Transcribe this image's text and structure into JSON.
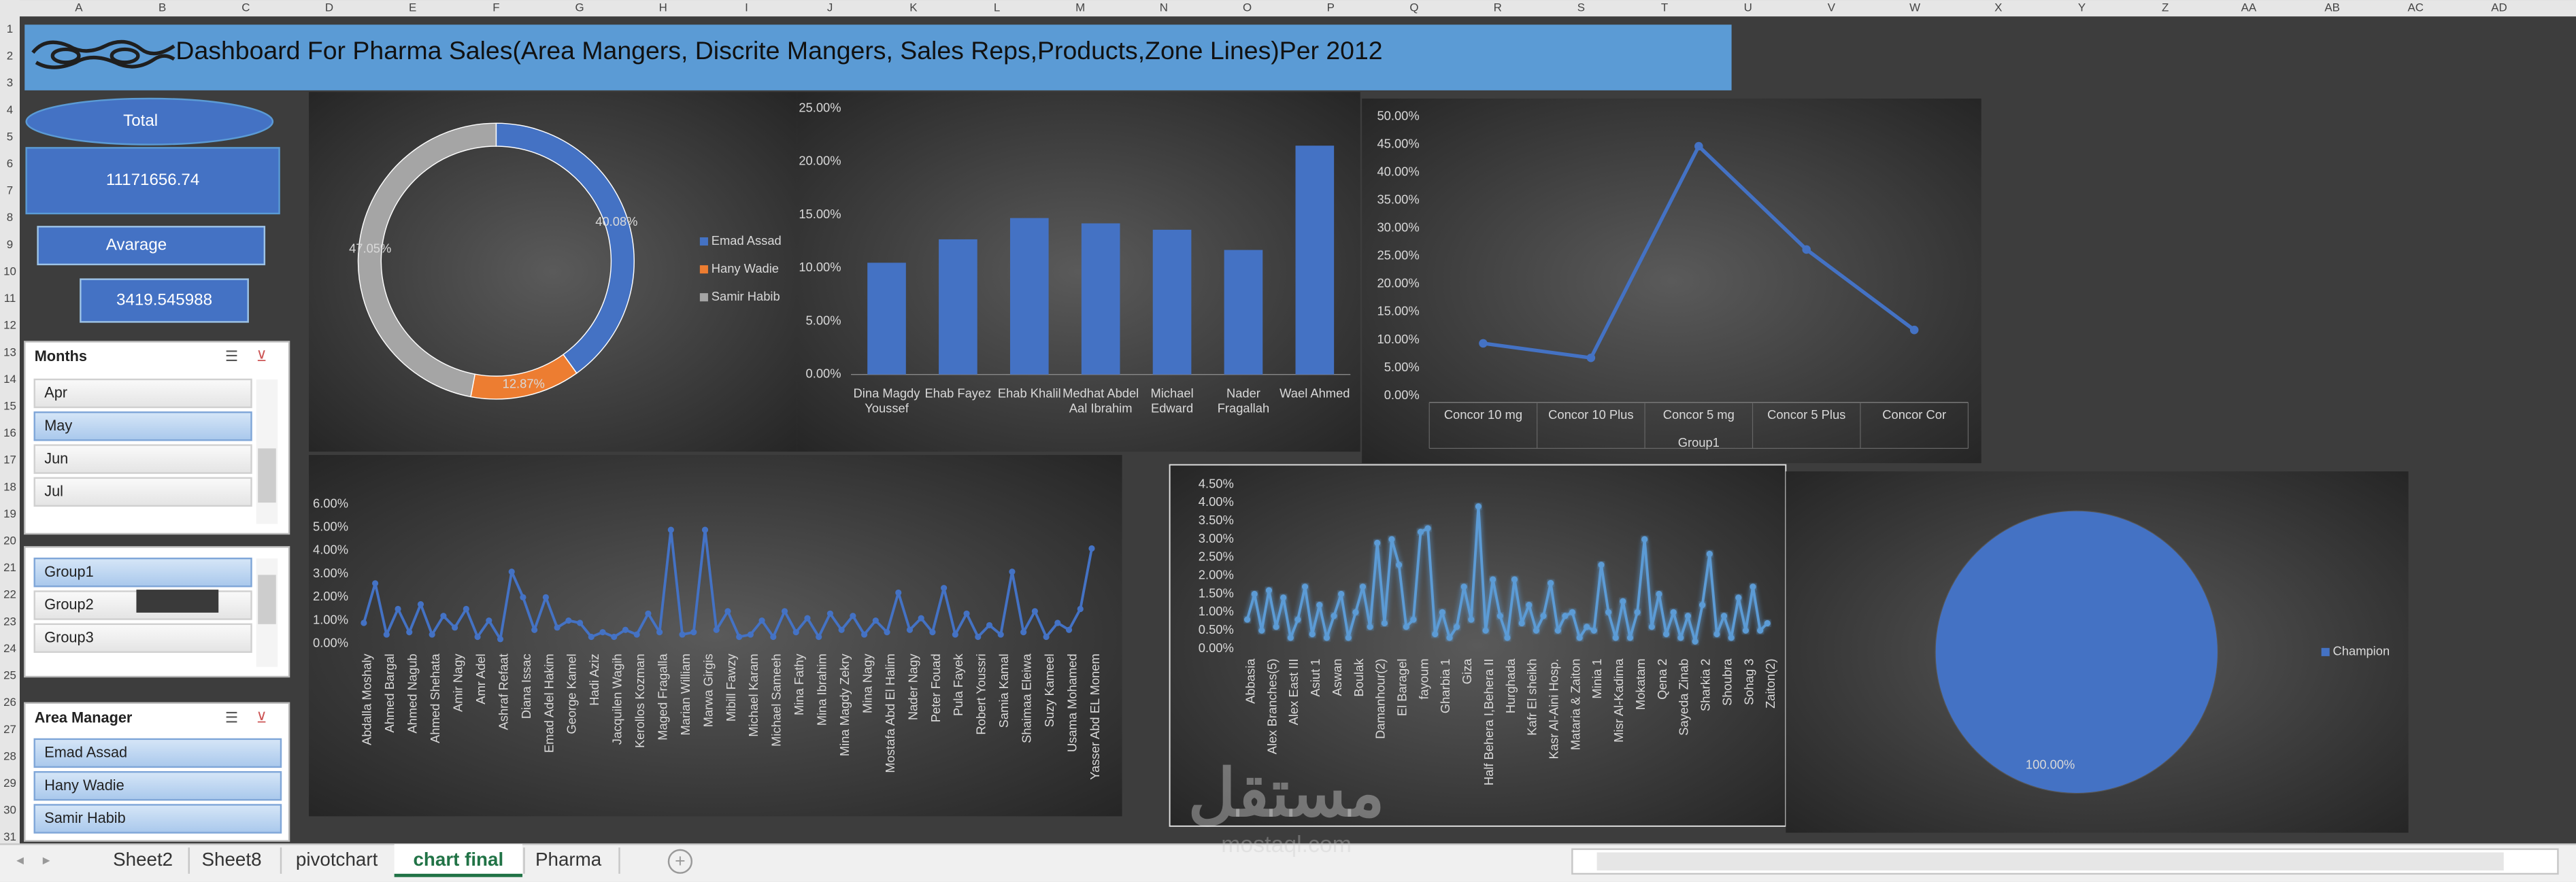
{
  "column_headers": [
    "A",
    "B",
    "C",
    "D",
    "E",
    "F",
    "G",
    "H",
    "I",
    "J",
    "K",
    "L",
    "M",
    "N",
    "O",
    "P",
    "Q",
    "R",
    "S",
    "T",
    "U",
    "V",
    "W",
    "X",
    "Y",
    "Z",
    "AA",
    "AB",
    "AC",
    "AD"
  ],
  "row_numbers": [
    1,
    2,
    3,
    4,
    5,
    6,
    7,
    8,
    9,
    10,
    11,
    12,
    13,
    14,
    15,
    16,
    17,
    18,
    19,
    20,
    21,
    22,
    23,
    24,
    25,
    26,
    27,
    28,
    29,
    30,
    31
  ],
  "title": "Dashboard For Pharma Sales(Area Mangers, Discrite Mangers, Sales Reps,Products,Zone Lines)Per 2012",
  "cards": {
    "total_label": "Total",
    "total_value": "11171656.74",
    "average_label": "Avarage",
    "average_value": "3419.545988"
  },
  "slicers": [
    {
      "title": "Months",
      "items": [
        "Apr",
        "May",
        "Jun",
        "Jul"
      ],
      "selected": [
        1
      ]
    },
    {
      "items": [
        "Group1",
        "Group2",
        "Group3"
      ],
      "selected": [
        0
      ]
    },
    {
      "title": "Area Manager",
      "items": [
        "Emad Assad",
        "Hany Wadie",
        "Samir Habib"
      ],
      "selected": [
        0,
        1,
        2
      ]
    }
  ],
  "chart_data": [
    {
      "type": "donut",
      "categories": [
        "Emad Assad",
        "Hany Wadie",
        "Samir Habib"
      ],
      "values": [
        40.08,
        12.87,
        47.05
      ],
      "value_labels": [
        "40.08%",
        "12.87%",
        "47.05%"
      ],
      "colors": [
        "#4472c4",
        "#ed7d31",
        "#a5a5a5"
      ],
      "legend": "right"
    },
    {
      "type": "bar",
      "categories": [
        "Dina Magdy Youssef",
        "Ehab Fayez",
        "Ehab Khalil",
        "Medhat Abdel Aal Ibrahim",
        "Michael Edward",
        "Nader Fragallah",
        "Wael Ahmed"
      ],
      "values": [
        10.5,
        12.7,
        14.7,
        14.2,
        13.6,
        11.7,
        21.5
      ],
      "color": "#4472c4",
      "ylim": [
        0,
        25
      ],
      "yticks": [
        {
          "value": 0,
          "label": "0.00%"
        },
        {
          "value": 5,
          "label": "5.00%"
        },
        {
          "value": 10,
          "label": "10.00%"
        },
        {
          "value": 15,
          "label": "15.00%"
        },
        {
          "value": 20,
          "label": "20.00%"
        },
        {
          "value": 25,
          "label": "25.00%"
        }
      ]
    },
    {
      "type": "line",
      "categories": [
        "Concor 10 mg",
        "Concor 10 Plus",
        "Concor 5 mg",
        "Concor 5 Plus",
        "Concor Cor"
      ],
      "values": [
        9.4,
        6.8,
        44.7,
        26.2,
        11.8
      ],
      "x_label": "Group1",
      "color": "#4472c4",
      "ylim": [
        0,
        50
      ],
      "yticks": [
        {
          "value": 0,
          "label": "0.00%"
        },
        {
          "value": 5,
          "label": "5.00%"
        },
        {
          "value": 10,
          "label": "10.00%"
        },
        {
          "value": 15,
          "label": "15.00%"
        },
        {
          "value": 20,
          "label": "20.00%"
        },
        {
          "value": 25,
          "label": "25.00%"
        },
        {
          "value": 30,
          "label": "30.00%"
        },
        {
          "value": 35,
          "label": "35.00%"
        },
        {
          "value": 40,
          "label": "40.00%"
        },
        {
          "value": 45,
          "label": "45.00%"
        },
        {
          "value": 50,
          "label": "50.00%"
        }
      ]
    },
    {
      "type": "line",
      "categories": [
        "Abdalla Moshaly",
        null,
        "Ahmed Bargal",
        null,
        "Ahmed Nagub",
        null,
        "Ahmed Shehata",
        null,
        "Amir Nagy",
        null,
        "Amr Adel",
        null,
        "Ashraf Refaat",
        null,
        "Diana Issac",
        null,
        "Emad Adel Hakim",
        null,
        "George Kamel",
        null,
        "Hadi Aziz",
        null,
        "Jacquilen Wagih",
        null,
        "Kerollos Kozman",
        null,
        "Maged Fragalla",
        null,
        "Marian William",
        null,
        "Marwa Girgis",
        null,
        "Mibill Fawzy",
        null,
        "Michael Karam",
        null,
        "Michael Sameeh",
        null,
        "Mina Fathy",
        null,
        "Mina Ibrahim",
        null,
        "Mina Magdy Zekry",
        null,
        "Mina Nagy",
        null,
        "Mostafa Abd El Halim",
        null,
        "Nader Nagy",
        null,
        "Peter Fouad",
        null,
        "Pula Fayek",
        null,
        "Robert Youssri",
        null,
        "Samia Kamal",
        null,
        "Shaimaa Eleiwa",
        null,
        "Suzy Kameel",
        null,
        "Usama Mohamed",
        null,
        "Yasser Abd EL Monem"
      ],
      "values": [
        0.9,
        2.6,
        0.4,
        1.5,
        0.5,
        1.7,
        0.4,
        1.2,
        0.7,
        1.5,
        0.3,
        1.0,
        0.2,
        3.1,
        2.0,
        0.6,
        2.0,
        0.7,
        1.0,
        0.9,
        0.3,
        0.5,
        0.3,
        0.6,
        0.4,
        1.3,
        0.5,
        4.9,
        0.4,
        0.5,
        4.9,
        0.6,
        1.4,
        0.3,
        0.4,
        1.0,
        0.3,
        1.4,
        0.5,
        1.1,
        0.3,
        1.3,
        0.6,
        1.2,
        0.4,
        1.0,
        0.5,
        2.2,
        0.6,
        1.1,
        0.5,
        2.4,
        0.4,
        1.3,
        0.3,
        0.8,
        0.4,
        3.1,
        0.5,
        1.4,
        0.3,
        0.9,
        0.6,
        1.5,
        4.1
      ],
      "color": "#4472c4",
      "ylim": [
        0,
        6
      ],
      "yticks": [
        {
          "value": 0,
          "label": "0.00%"
        },
        {
          "value": 1,
          "label": "1.00%"
        },
        {
          "value": 2,
          "label": "2.00%"
        },
        {
          "value": 3,
          "label": "3.00%"
        },
        {
          "value": 4,
          "label": "4.00%"
        },
        {
          "value": 5,
          "label": "5.00%"
        },
        {
          "value": 6,
          "label": "6.00%"
        }
      ]
    },
    {
      "type": "line",
      "glow": true,
      "categories": [
        "Abbasia",
        null,
        null,
        "Alex Branches(5)",
        null,
        null,
        "Alex East III",
        null,
        null,
        "Asiut 1",
        null,
        null,
        "Aswan",
        null,
        null,
        "Boulak",
        null,
        null,
        "Damanhour(2)",
        null,
        null,
        "El Baragel",
        null,
        null,
        "fayoum",
        null,
        null,
        "Gharbia 1",
        null,
        null,
        "Giza",
        null,
        null,
        "Half Behera I,Behera II",
        null,
        null,
        "Hurghada",
        null,
        null,
        "Kafr El sheikh",
        null,
        null,
        "Kasr Al-Aini Hosp.",
        null,
        null,
        "Mataria & Zaiton",
        null,
        null,
        "Minia 1",
        null,
        null,
        "Misr Al-Kadima",
        null,
        null,
        "Mokatam",
        null,
        null,
        "Qena 2",
        null,
        null,
        "Sayeda Zinab",
        null,
        null,
        "Sharkia 2",
        null,
        null,
        "Shoubra",
        null,
        null,
        "Sohag 3",
        null,
        null,
        "Zaiton(2)"
      ],
      "values": [
        0.8,
        1.5,
        0.5,
        1.6,
        0.6,
        1.4,
        0.3,
        0.8,
        1.7,
        0.4,
        1.2,
        0.3,
        0.9,
        1.5,
        0.3,
        1.0,
        1.7,
        0.6,
        2.9,
        0.7,
        3.0,
        2.3,
        0.6,
        0.8,
        3.2,
        3.3,
        0.4,
        1.0,
        0.3,
        0.6,
        1.7,
        0.8,
        3.9,
        0.5,
        1.9,
        0.9,
        0.3,
        1.9,
        0.7,
        1.2,
        0.5,
        0.9,
        1.8,
        0.5,
        0.9,
        1.0,
        0.3,
        0.6,
        0.5,
        2.3,
        1.0,
        0.3,
        1.3,
        0.3,
        1.0,
        3.0,
        0.6,
        1.5,
        0.4,
        1.0,
        0.3,
        0.9,
        0.2,
        1.2,
        2.6,
        0.4,
        0.9,
        0.3,
        1.4,
        0.5,
        1.7,
        0.5,
        0.7
      ],
      "color": "#5b9bd5",
      "ylim": [
        0,
        4.5
      ],
      "yticks": [
        {
          "value": 0,
          "label": "0.00%"
        },
        {
          "value": 0.5,
          "label": "0.50%"
        },
        {
          "value": 1,
          "label": "1.00%"
        },
        {
          "value": 1.5,
          "label": "1.50%"
        },
        {
          "value": 2,
          "label": "2.00%"
        },
        {
          "value": 2.5,
          "label": "2.50%"
        },
        {
          "value": 3,
          "label": "3.00%"
        },
        {
          "value": 3.5,
          "label": "3.50%"
        },
        {
          "value": 4,
          "label": "4.00%"
        },
        {
          "value": 4.5,
          "label": "4.50%"
        }
      ]
    },
    {
      "type": "pie",
      "categories": [
        "Champion"
      ],
      "values": [
        100
      ],
      "value_labels": [
        "100.00%"
      ],
      "colors": [
        "#4472c4"
      ],
      "legend": "right"
    }
  ],
  "sheet_tabs": {
    "tabs": [
      "Sheet2",
      "Sheet8",
      "pivotchart",
      "chart final",
      "Pharma"
    ],
    "active": 3
  },
  "watermark": {
    "arabic": "مستقل",
    "latin": "mostaql.com"
  }
}
